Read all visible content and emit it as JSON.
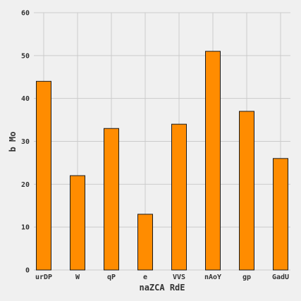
{
  "chart_data": {
    "type": "bar",
    "title": "",
    "xlabel": "naZCA RdE",
    "ylabel": "b Mo",
    "categories": [
      "urDP",
      "W",
      "qP",
      "e",
      "VVS",
      "nAoY",
      "gp",
      "GadU"
    ],
    "values": [
      44,
      22,
      33,
      13,
      34,
      51,
      37,
      26
    ],
    "ylim": [
      0,
      60
    ],
    "yticks": [
      0,
      10,
      20,
      30,
      40,
      50,
      60
    ],
    "grid": true,
    "bar_color": "#ff8c00",
    "bar_edge_color": "#1a1a1a",
    "background_color": "#f0f0f0",
    "grid_color": "#cbcbcb"
  }
}
